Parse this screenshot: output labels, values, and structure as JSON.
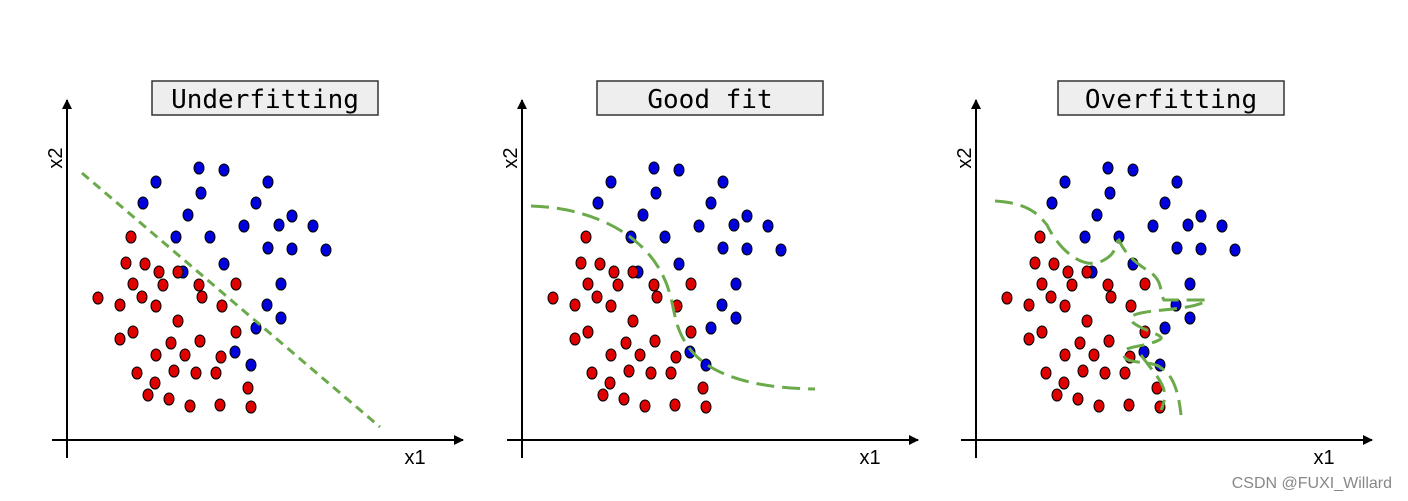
{
  "panels": [
    {
      "title": "Underfitting",
      "x_label": "x1",
      "y_label": "x2"
    },
    {
      "title": "Good fit",
      "x_label": "x1",
      "y_label": "x2"
    },
    {
      "title": "Overfitting",
      "x_label": "x1",
      "y_label": "x2"
    }
  ],
  "watermark": "CSDN @FUXI_Willard"
}
